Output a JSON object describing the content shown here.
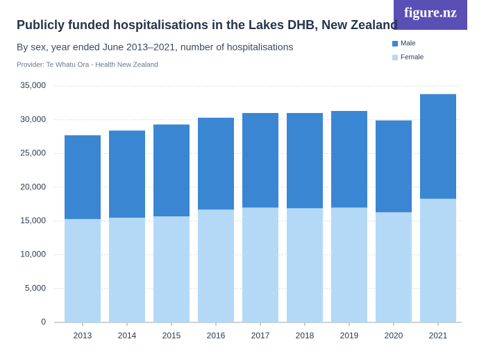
{
  "chart_data": {
    "type": "stacked_bar",
    "title": "Publicly funded hospitalisations in the Lakes DHB, New Zealand",
    "subtitle": "By sex, year ended June 2013–2021, number of hospitalisations",
    "provider": "Provider: Te Whatu Ora - Health New Zealand",
    "logo": "figure.nz",
    "categories": [
      "2013",
      "2014",
      "2015",
      "2016",
      "2017",
      "2018",
      "2019",
      "2020",
      "2021"
    ],
    "series": [
      {
        "name": "Male",
        "color": "#3a86d2",
        "values": [
          12400,
          12900,
          13600,
          13600,
          14000,
          14100,
          14300,
          13600,
          15500
        ]
      },
      {
        "name": "Female",
        "color": "#b3d9f7",
        "values": [
          15300,
          15500,
          15700,
          16700,
          17000,
          16900,
          17000,
          16300,
          18300
        ]
      }
    ],
    "ylim": [
      0,
      35000
    ],
    "yticks": [
      0,
      {
        "value": 5000,
        "label": "5,000"
      },
      {
        "value": 10000,
        "label": "10,000"
      },
      {
        "value": 15000,
        "label": "15,000"
      },
      {
        "value": 20000,
        "label": "20,000"
      },
      {
        "value": 25000,
        "label": "25,000"
      },
      {
        "value": 30000,
        "label": "30,000"
      },
      {
        "value": 35000,
        "label": "35,000"
      }
    ],
    "grid": true
  }
}
